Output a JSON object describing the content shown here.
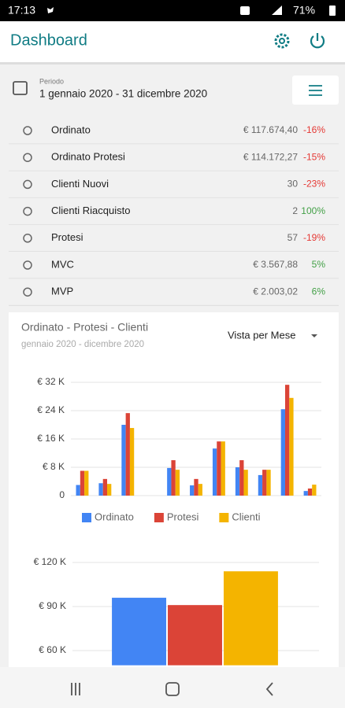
{
  "status_bar": {
    "time": "17:13",
    "battery": "71%"
  },
  "app_bar": {
    "title": "Dashboard"
  },
  "period": {
    "label": "Periodo",
    "range": "1 gennaio 2020 - 31 dicembre 2020"
  },
  "metrics": [
    {
      "label": "Ordinato",
      "value": "€ 117.674,40",
      "change": "-16%"
    },
    {
      "label": "Ordinato Protesi",
      "value": "€ 114.172,27",
      "change": "-15%"
    },
    {
      "label": "Clienti Nuovi",
      "value": "30",
      "change": "-23%"
    },
    {
      "label": "Clienti Riacquisto",
      "value": "2",
      "change": "100%"
    },
    {
      "label": "Protesi",
      "value": "57",
      "change": "-19%"
    },
    {
      "label": "MVC",
      "value": "€ 3.567,88",
      "change": "5%"
    },
    {
      "label": "MVP",
      "value": "€ 2.003,02",
      "change": "6%"
    }
  ],
  "chart_data": [
    {
      "type": "bar",
      "title": "Ordinato - Protesi - Clienti",
      "subtitle": "gennaio 2020 - dicembre 2020",
      "view_selector": "Vista per Mese",
      "categories": [
        null,
        null,
        null,
        null,
        null,
        null,
        null,
        null,
        null,
        null,
        null
      ],
      "series": [
        {
          "name": "Ordinato",
          "color": "#4285f4",
          "values": [
            3000,
            3500,
            20000,
            0,
            7800,
            2900,
            13300,
            8000,
            5800,
            24400,
            1300
          ]
        },
        {
          "name": "Protesi",
          "color": "#db4437",
          "values": [
            7000,
            4700,
            23300,
            0,
            10000,
            4700,
            15300,
            10000,
            7300,
            31300,
            2000
          ]
        },
        {
          "name": "Clienti",
          "color": "#f4b400",
          "values": [
            7000,
            3300,
            19100,
            0,
            7300,
            3300,
            15300,
            7300,
            7300,
            27600,
            3100
          ]
        }
      ],
      "ylim": [
        0,
        32000
      ],
      "yticks": [
        0,
        {
          "value": 8000,
          "label": "€ 8 K"
        },
        {
          "value": 16000,
          "label": "€ 16 K"
        },
        {
          "value": 24000,
          "label": "€ 24 K"
        },
        {
          "value": 32000,
          "label": "€ 32 K"
        }
      ],
      "grid": true,
      "legend": "bottom"
    },
    {
      "type": "bar",
      "categories": [
        null
      ],
      "series": [
        {
          "color": "#4285f4",
          "values": [
            96000
          ]
        },
        {
          "color": "#db4437",
          "values": [
            91000
          ]
        },
        {
          "color": "#f4b400",
          "values": [
            114000
          ]
        }
      ],
      "ylim": [
        50000,
        125000
      ],
      "yticks": [
        {
          "value": 60000,
          "label": "€ 60 K"
        },
        {
          "value": 90000,
          "label": "€ 90 K"
        },
        {
          "value": 120000,
          "label": "€ 120 K"
        }
      ],
      "grid": true
    }
  ]
}
